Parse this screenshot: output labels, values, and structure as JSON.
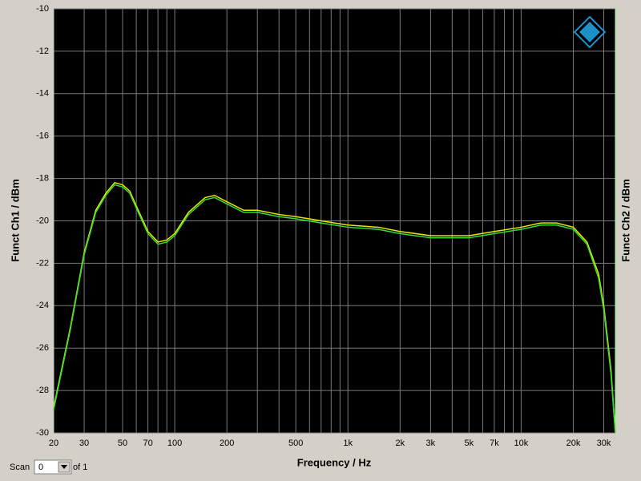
{
  "chart_data": {
    "type": "line",
    "xlabel": "Frequency / Hz",
    "ylabel": "Funct Ch1 / dBm",
    "y2label": "Funct Ch2 / dBm",
    "xscale": "log",
    "grid": true,
    "xlim": [
      20,
      35000
    ],
    "ylim": [
      -30,
      -10
    ],
    "xticks": [
      20,
      30,
      50,
      70,
      100,
      200,
      500,
      {
        "value": 1000,
        "label": "1k"
      },
      {
        "value": 2000,
        "label": "2k"
      },
      {
        "value": 3000,
        "label": "3k"
      },
      {
        "value": 5000,
        "label": "5k"
      },
      {
        "value": 7000,
        "label": "7k"
      },
      {
        "value": 10000,
        "label": "10k"
      },
      {
        "value": 20000,
        "label": "20k"
      },
      {
        "value": 30000,
        "label": "30k"
      }
    ],
    "xminor": [
      40,
      60,
      80,
      90,
      300,
      400,
      600,
      700,
      800,
      900,
      4000,
      6000,
      8000,
      9000
    ],
    "yticks": [
      -30,
      -28,
      -26,
      -24,
      -22,
      -20,
      -18,
      -16,
      -14,
      -12,
      -10
    ],
    "x": [
      20,
      25,
      30,
      35,
      40,
      45,
      50,
      55,
      60,
      70,
      80,
      90,
      100,
      120,
      150,
      170,
      200,
      250,
      300,
      400,
      500,
      700,
      1000,
      1500,
      2000,
      3000,
      4000,
      5000,
      7000,
      10000,
      13000,
      16000,
      20000,
      24000,
      28000,
      30000,
      33000,
      35000
    ],
    "series": [
      {
        "color": "#e8e800",
        "values": [
          -28.8,
          -25,
          -21.5,
          -19.5,
          -18.7,
          -18.2,
          -18.3,
          -18.6,
          -19.3,
          -20.5,
          -21,
          -20.9,
          -20.6,
          -19.6,
          -18.9,
          -18.8,
          -19.1,
          -19.5,
          -19.5,
          -19.7,
          -19.8,
          -20,
          -20.2,
          -20.3,
          -20.5,
          -20.7,
          -20.7,
          -20.7,
          -20.5,
          -20.3,
          -20.1,
          -20.1,
          -20.3,
          -21,
          -22.5,
          -24,
          -27,
          -30
        ]
      },
      {
        "color": "#33dd33",
        "values": [
          -28.9,
          -25.1,
          -21.6,
          -19.6,
          -18.8,
          -18.3,
          -18.4,
          -18.7,
          -19.4,
          -20.6,
          -21.1,
          -21,
          -20.7,
          -19.7,
          -19,
          -18.9,
          -19.2,
          -19.6,
          -19.6,
          -19.8,
          -19.9,
          -20.1,
          -20.3,
          -20.4,
          -20.6,
          -20.8,
          -20.8,
          -20.8,
          -20.6,
          -20.4,
          -20.2,
          -20.2,
          -20.4,
          -21.1,
          -22.7,
          -24.2,
          -27.2,
          -30
        ]
      }
    ]
  },
  "ui": {
    "scan_label": "Scan",
    "scan_value": "0",
    "scan_of": "of 1"
  }
}
